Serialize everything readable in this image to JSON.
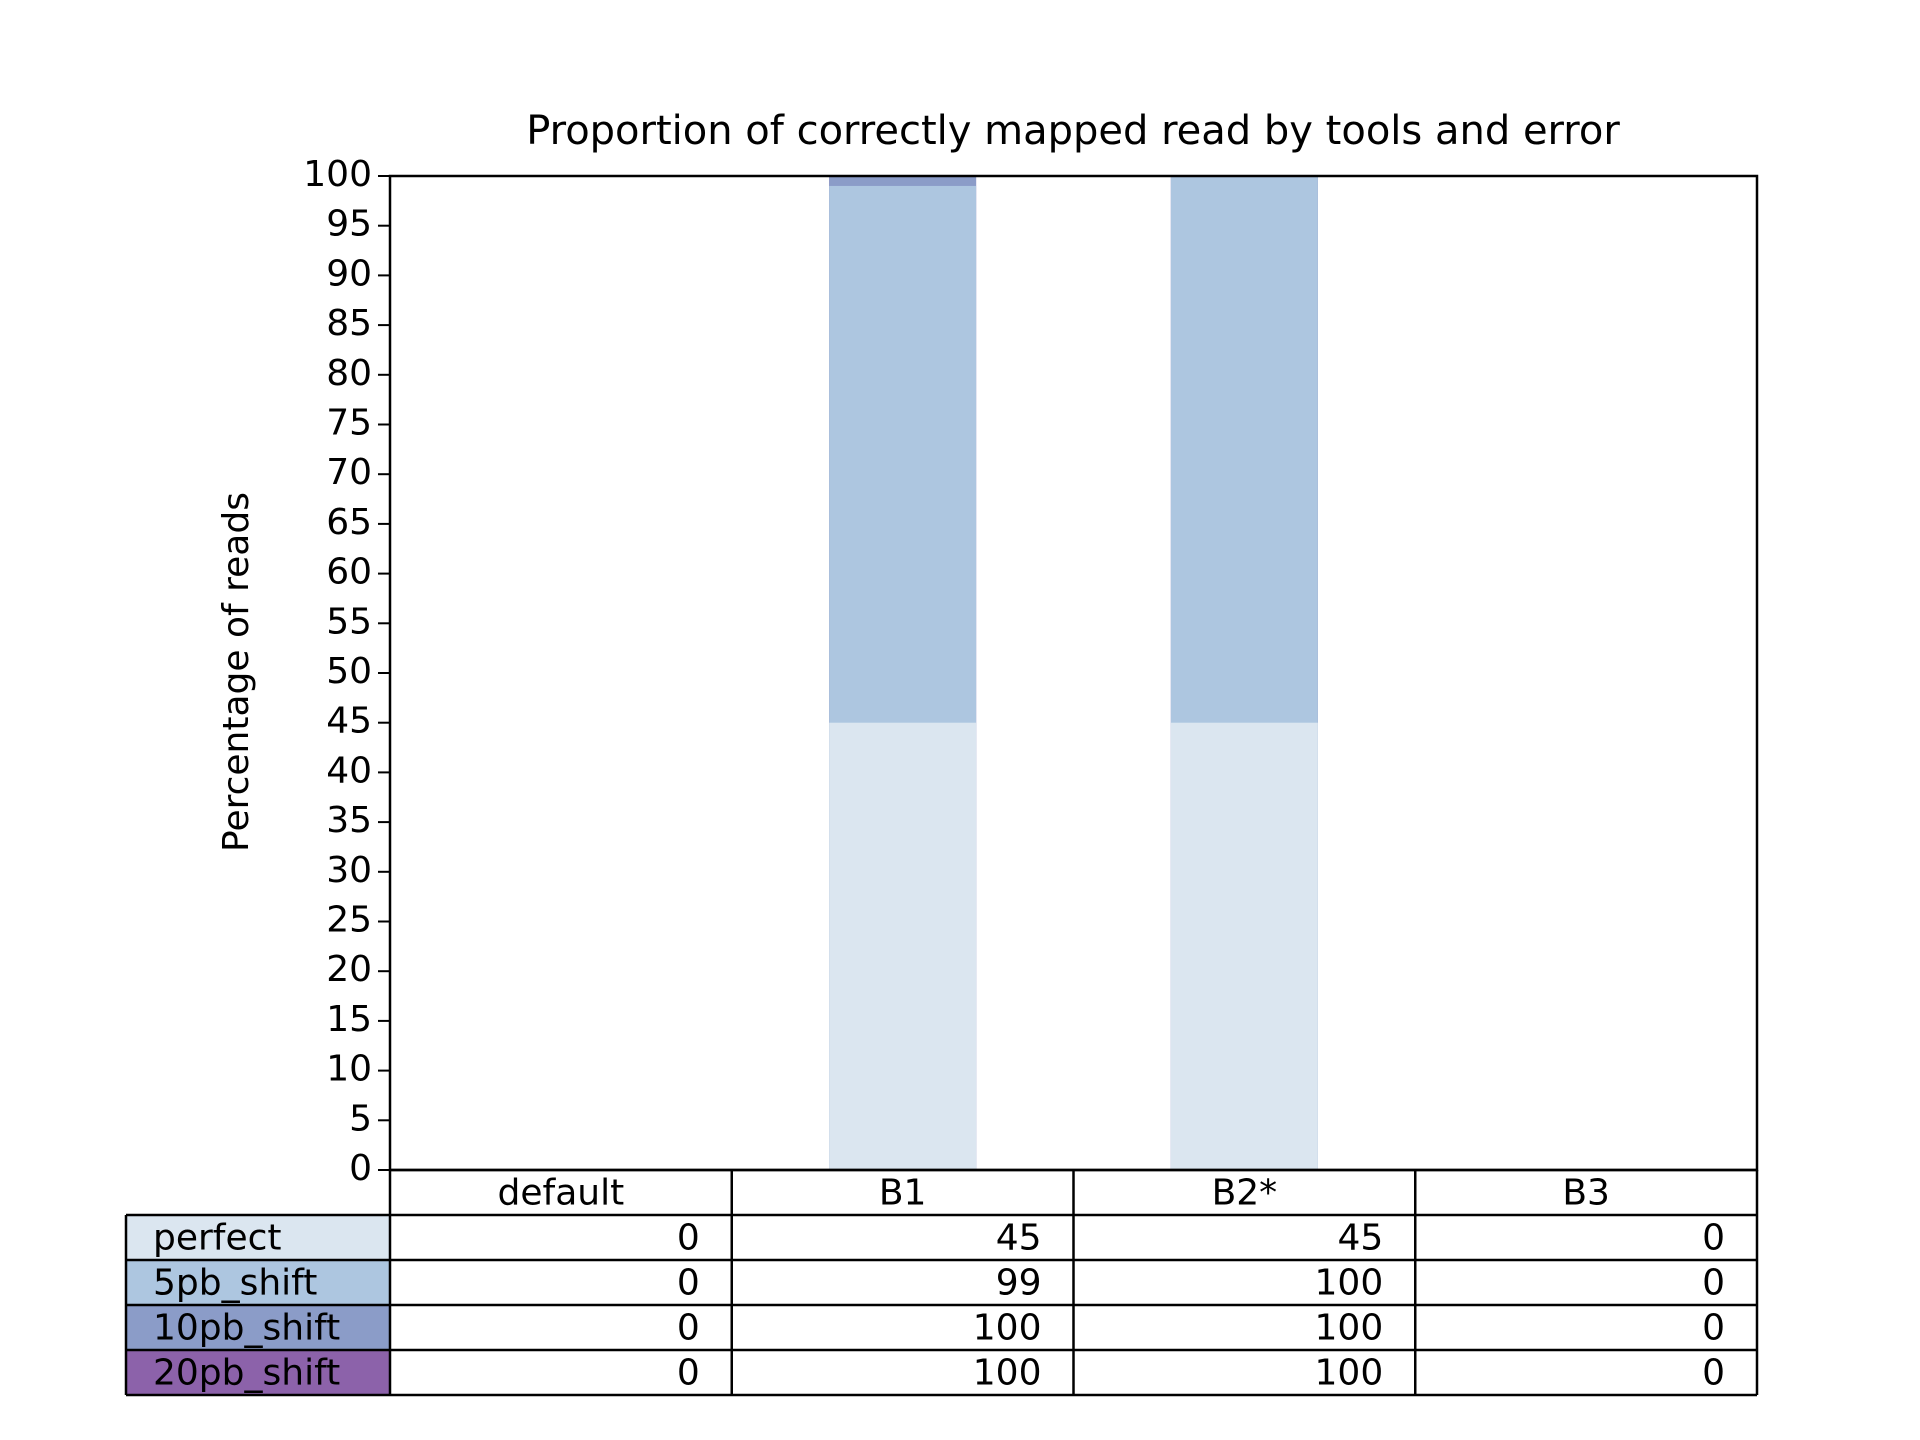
{
  "chart_data": {
    "type": "bar",
    "title": "Proportion of correctly mapped read by tools and error",
    "ylabel": "Percentage of reads",
    "categories": [
      "default",
      "B1",
      "B2*",
      "B3"
    ],
    "series": [
      {
        "name": "perfect",
        "color": "#dbe6f0",
        "values": [
          0,
          45,
          45,
          0
        ]
      },
      {
        "name": "5pb_shift",
        "color": "#adc6e0",
        "values": [
          0,
          99,
          100,
          0
        ]
      },
      {
        "name": "10pb_shift",
        "color": "#8b9cc8",
        "values": [
          0,
          100,
          100,
          0
        ]
      },
      {
        "name": "20pb_shift",
        "color": "#8c62aa",
        "values": [
          0,
          100,
          100,
          0
        ]
      }
    ],
    "ylim": [
      0,
      100
    ],
    "yticks": [
      0,
      5,
      10,
      15,
      20,
      25,
      30,
      35,
      40,
      45,
      50,
      55,
      60,
      65,
      70,
      75,
      80,
      85,
      90,
      95,
      100
    ]
  }
}
